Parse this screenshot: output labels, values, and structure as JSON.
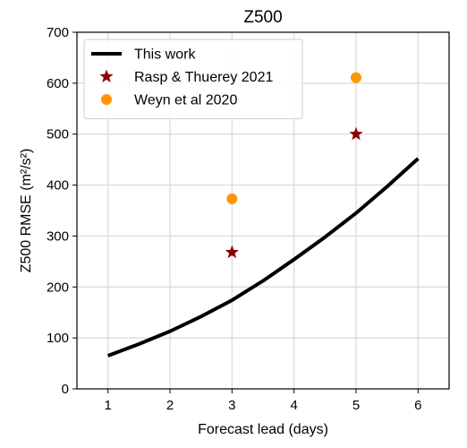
{
  "chart_data": {
    "type": "line",
    "title": "Z500",
    "xlabel": "Forecast lead (days)",
    "ylabel": "Z500 RMSE (m²/s²)",
    "xlim": [
      0.5,
      6.5
    ],
    "ylim": [
      0,
      700
    ],
    "xticks": [
      1,
      2,
      3,
      4,
      5,
      6
    ],
    "yticks": [
      0,
      100,
      200,
      300,
      400,
      500,
      600,
      700
    ],
    "grid": true,
    "legend_position": "top-left",
    "series": [
      {
        "name": "This work",
        "kind": "line",
        "color": "#000000",
        "x": [
          1,
          1.5,
          2,
          2.5,
          3,
          3.5,
          4,
          4.5,
          5,
          5.5,
          6
        ],
        "y": [
          65,
          88,
          113,
          142,
          174,
          212,
          254,
          298,
          345,
          397,
          452
        ]
      },
      {
        "name": "Rasp & Thuerey 2021",
        "kind": "star",
        "color": "#8b0000",
        "x": [
          3,
          5
        ],
        "y": [
          268,
          500
        ]
      },
      {
        "name": "Weyn et al 2020",
        "kind": "circle",
        "color": "#ff9500",
        "x": [
          3,
          5
        ],
        "y": [
          373,
          611
        ]
      }
    ]
  }
}
